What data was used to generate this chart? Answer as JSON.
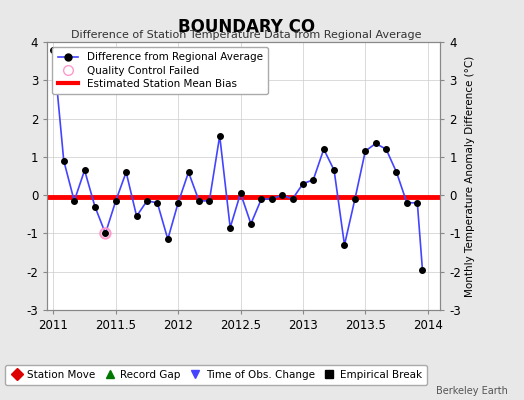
{
  "title": "BOUNDARY CO",
  "subtitle": "Difference of Station Temperature Data from Regional Average",
  "ylabel_right": "Monthly Temperature Anomaly Difference (°C)",
  "watermark": "Berkeley Earth",
  "xlim": [
    2010.95,
    2014.1
  ],
  "ylim": [
    -3,
    4
  ],
  "yticks": [
    -3,
    -2,
    -1,
    0,
    1,
    2,
    3,
    4
  ],
  "xticks": [
    2011,
    2011.5,
    2012,
    2012.5,
    2013,
    2013.5,
    2014
  ],
  "xticklabels": [
    "2011",
    "2011.5",
    "2012",
    "2012.5",
    "2013",
    "2013.5",
    "2014"
  ],
  "bias_y": -0.05,
  "bg_color": "#e8e8e8",
  "plot_bg_color": "#ffffff",
  "line_color": "#4444ff",
  "bias_color": "#ff0000",
  "x_data": [
    2011.0,
    2011.083,
    2011.167,
    2011.25,
    2011.333,
    2011.417,
    2011.5,
    2011.583,
    2011.667,
    2011.75,
    2011.833,
    2011.917,
    2012.0,
    2012.083,
    2012.167,
    2012.25,
    2012.333,
    2012.417,
    2012.5,
    2012.583,
    2012.667,
    2012.75,
    2012.833,
    2012.917,
    2013.0,
    2013.083,
    2013.167,
    2013.25,
    2013.333,
    2013.417,
    2013.5,
    2013.583,
    2013.667,
    2013.75,
    2013.833,
    2013.917,
    2013.958
  ],
  "y_data": [
    3.8,
    0.9,
    -0.15,
    0.65,
    -0.3,
    -1.0,
    -0.15,
    0.6,
    -0.55,
    -0.15,
    -0.2,
    -1.15,
    -0.2,
    0.6,
    -0.15,
    -0.15,
    1.55,
    -0.85,
    0.05,
    -0.75,
    -0.1,
    -0.1,
    0.0,
    -0.1,
    0.3,
    0.4,
    1.2,
    0.65,
    -1.3,
    -0.1,
    1.15,
    1.35,
    1.2,
    0.6,
    -0.2,
    -0.2,
    -1.95
  ],
  "qc_failed_x": [
    2011.417
  ],
  "qc_failed_y": [
    -1.0
  ],
  "marker_size": 16
}
